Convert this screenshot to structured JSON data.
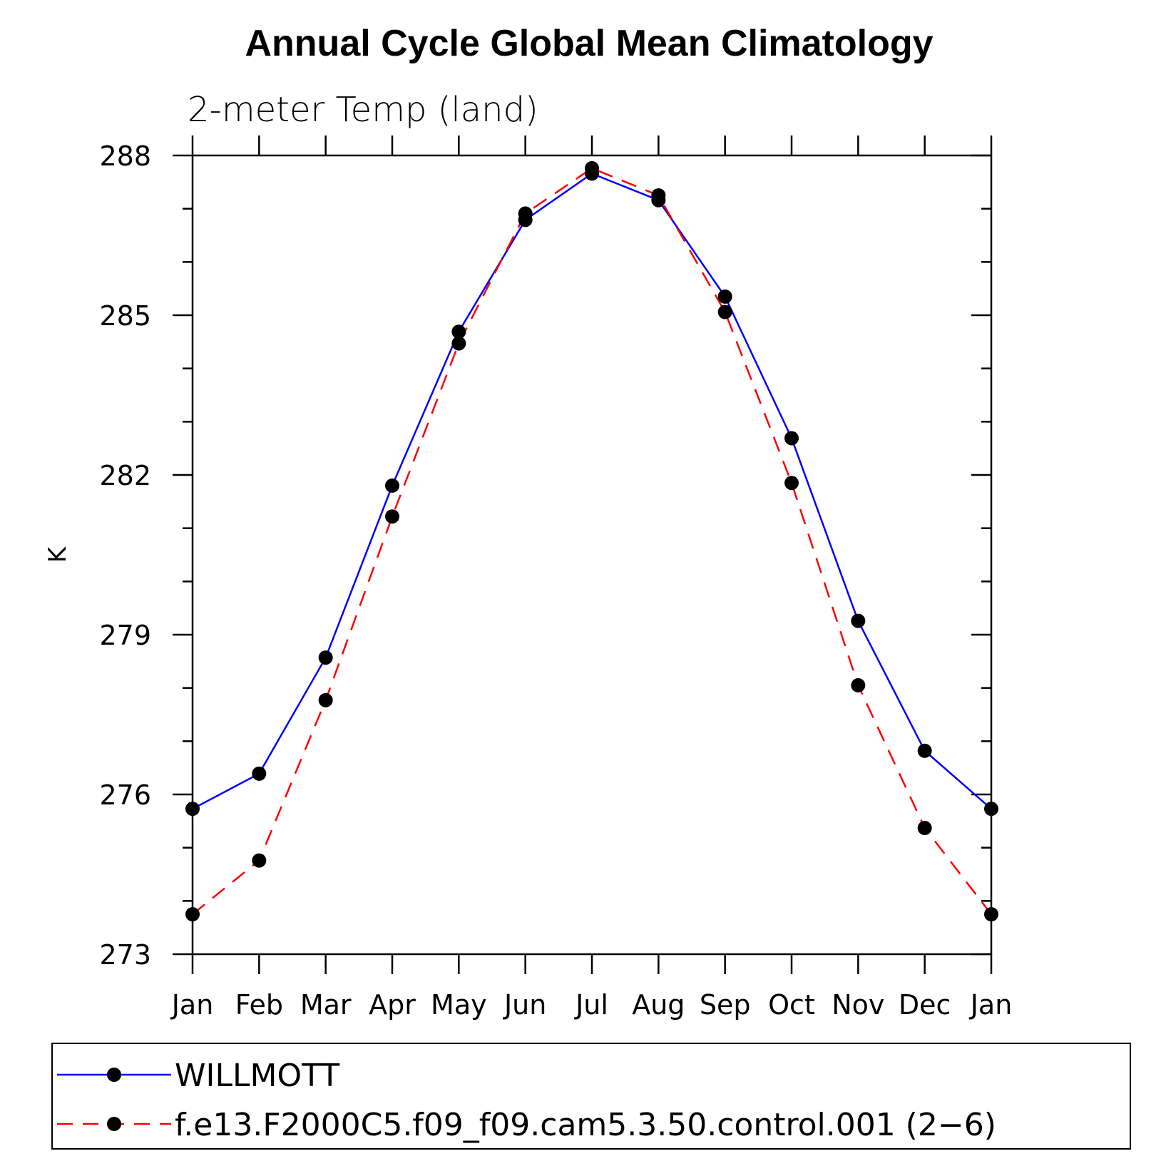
{
  "chart_data": {
    "type": "line",
    "title": "Annual Cycle Global Mean Climatology",
    "subtitle": "2-meter Temp (land)",
    "xlabel": "",
    "ylabel": "K",
    "categories": [
      "Jan",
      "Feb",
      "Mar",
      "Apr",
      "May",
      "Jun",
      "Jul",
      "Aug",
      "Sep",
      "Oct",
      "Nov",
      "Dec",
      "Jan"
    ],
    "ylim": [
      273,
      288
    ],
    "yticks": [
      "273",
      "276",
      "279",
      "282",
      "285",
      "288"
    ],
    "series": [
      {
        "name": "WILLMOTT",
        "color": "#0000ff",
        "style": "solid",
        "values": [
          275.73,
          276.39,
          278.57,
          281.8,
          284.69,
          286.79,
          287.66,
          287.16,
          285.35,
          282.69,
          279.26,
          276.82,
          275.73
        ]
      },
      {
        "name": "f.e13.F2000C5.f09_f09.cam5.3.50.control.001 (2−6)",
        "color": "#ff0000",
        "style": "dashed",
        "values": [
          273.75,
          274.76,
          277.77,
          281.22,
          284.47,
          286.91,
          287.76,
          287.25,
          285.06,
          281.85,
          278.05,
          275.37,
          273.75
        ]
      }
    ],
    "legend_position": "bottom"
  }
}
